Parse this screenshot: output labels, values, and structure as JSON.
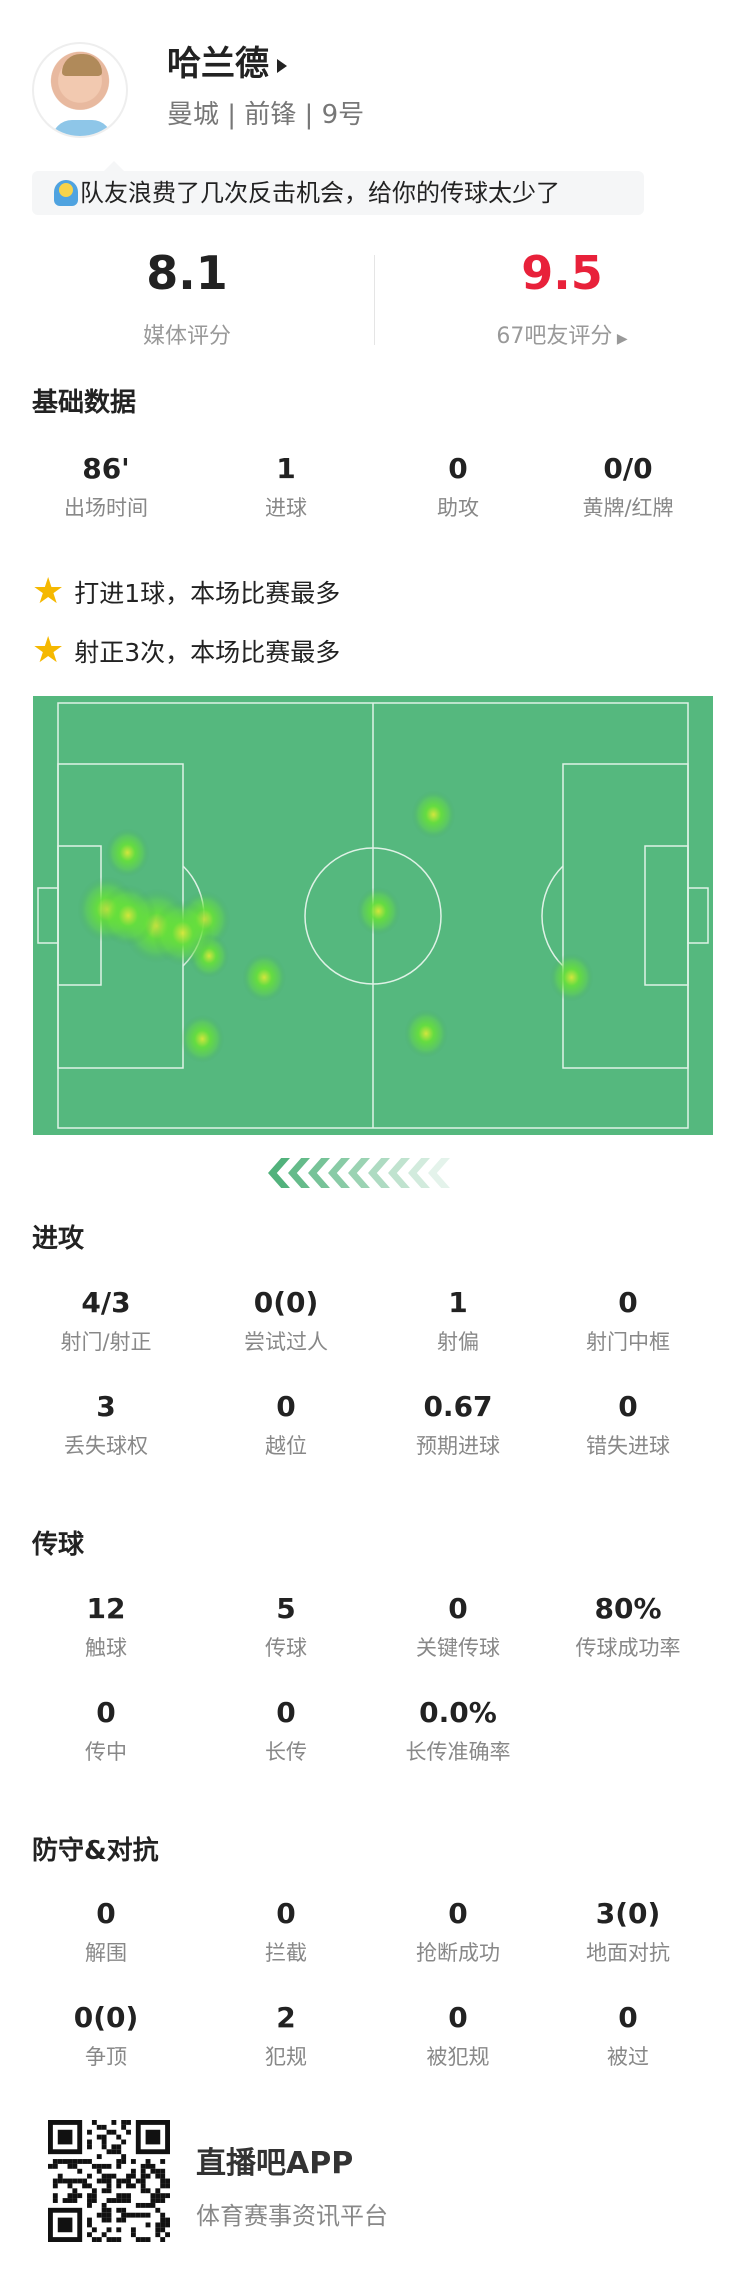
{
  "player": {
    "name": "哈兰德",
    "subtitle": "曼城 | 前锋 | 9号"
  },
  "comment": "队友浪费了几次反击机会，给你的传球太少了",
  "ratings": {
    "media_value": "8.1",
    "media_label": "媒体评分",
    "fan_value": "9.5",
    "fan_label": "67吧友评分",
    "fan_color": "#e8213a"
  },
  "basic": {
    "title": "基础数据",
    "stats": [
      {
        "value": "86'",
        "label": "出场时间"
      },
      {
        "value": "1",
        "label": "进球"
      },
      {
        "value": "0",
        "label": "助攻"
      },
      {
        "value": "0/0",
        "label": "黄牌/红牌"
      }
    ]
  },
  "highlights": [
    {
      "icon": "star-icon",
      "text": "打进1球，本场比赛最多"
    },
    {
      "icon": "star-icon",
      "text": "射正3次，本场比赛最多"
    }
  ],
  "heatmap": {
    "pitch_color": "#55b87e",
    "hot_color": "#66e03a",
    "attack_direction": "left"
  },
  "attack": {
    "title": "进攻",
    "stats": [
      {
        "value": "4/3",
        "label": "射门/射正"
      },
      {
        "value": "0(0)",
        "label": "尝试过人"
      },
      {
        "value": "1",
        "label": "射偏"
      },
      {
        "value": "0",
        "label": "射门中框"
      },
      {
        "value": "3",
        "label": "丢失球权"
      },
      {
        "value": "0",
        "label": "越位"
      },
      {
        "value": "0.67",
        "label": "预期进球"
      },
      {
        "value": "0",
        "label": "错失进球"
      }
    ]
  },
  "passing": {
    "title": "传球",
    "stats": [
      {
        "value": "12",
        "label": "触球"
      },
      {
        "value": "5",
        "label": "传球"
      },
      {
        "value": "0",
        "label": "关键传球"
      },
      {
        "value": "80%",
        "label": "传球成功率"
      },
      {
        "value": "0",
        "label": "传中"
      },
      {
        "value": "0",
        "label": "长传"
      },
      {
        "value": "0.0%",
        "label": "长传准确率"
      }
    ]
  },
  "defense": {
    "title": "防守&对抗",
    "stats": [
      {
        "value": "0",
        "label": "解围"
      },
      {
        "value": "0",
        "label": "拦截"
      },
      {
        "value": "0",
        "label": "抢断成功"
      },
      {
        "value": "3(0)",
        "label": "地面对抗"
      },
      {
        "value": "0(0)",
        "label": "争顶"
      },
      {
        "value": "2",
        "label": "犯规"
      },
      {
        "value": "0",
        "label": "被犯规"
      },
      {
        "value": "0",
        "label": "被过"
      }
    ]
  },
  "footer": {
    "app_name": "直播吧APP",
    "slogan": "体育赛事资讯平台"
  }
}
